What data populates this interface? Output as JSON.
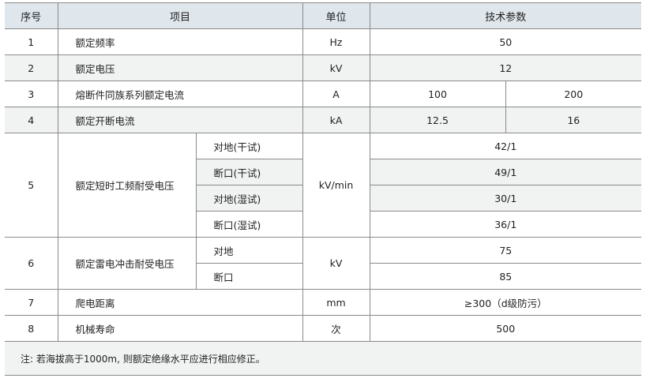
{
  "headers": {
    "no": "序号",
    "item": "项目",
    "unit": "单位",
    "spec": "技术参数"
  },
  "rows": [
    {
      "no": "1",
      "item": "额定频率",
      "unit": "Hz",
      "value": "50"
    },
    {
      "no": "2",
      "item": "额定电压",
      "unit": "kV",
      "value": "12"
    },
    {
      "no": "3",
      "item": "熔断件同族系列额定电流",
      "unit": "A",
      "values": [
        "100",
        "200"
      ]
    },
    {
      "no": "4",
      "item": "额定开断电流",
      "unit": "kA",
      "values": [
        "12.5",
        "16"
      ]
    },
    {
      "no": "5",
      "item": "额定短时工频耐受电压",
      "unit": "kV/min",
      "sub": [
        {
          "label": "对地(干试)",
          "value": "42/1"
        },
        {
          "label": "断口(干试)",
          "value": "49/1"
        },
        {
          "label": "对地(湿试)",
          "value": "30/1"
        },
        {
          "label": "断口(湿试)",
          "value": "36/1"
        }
      ]
    },
    {
      "no": "6",
      "item": "额定雷电冲击耐受电压",
      "unit": "kV",
      "sub": [
        {
          "label": "对地",
          "value": "75"
        },
        {
          "label": "断口",
          "value": "85"
        }
      ]
    },
    {
      "no": "7",
      "item": "爬电距离",
      "unit": "mm",
      "value": "≥300（d级防污）"
    },
    {
      "no": "8",
      "item": "机械寿命",
      "unit": "次",
      "value": "500"
    }
  ],
  "note": "注: 若海拔高于1000m, 则额定绝缘水平应进行相应修正。",
  "colors": {
    "header_bg": "#dfe6ec",
    "shade": "#f1f2f2",
    "border": "#8a8a8a"
  }
}
